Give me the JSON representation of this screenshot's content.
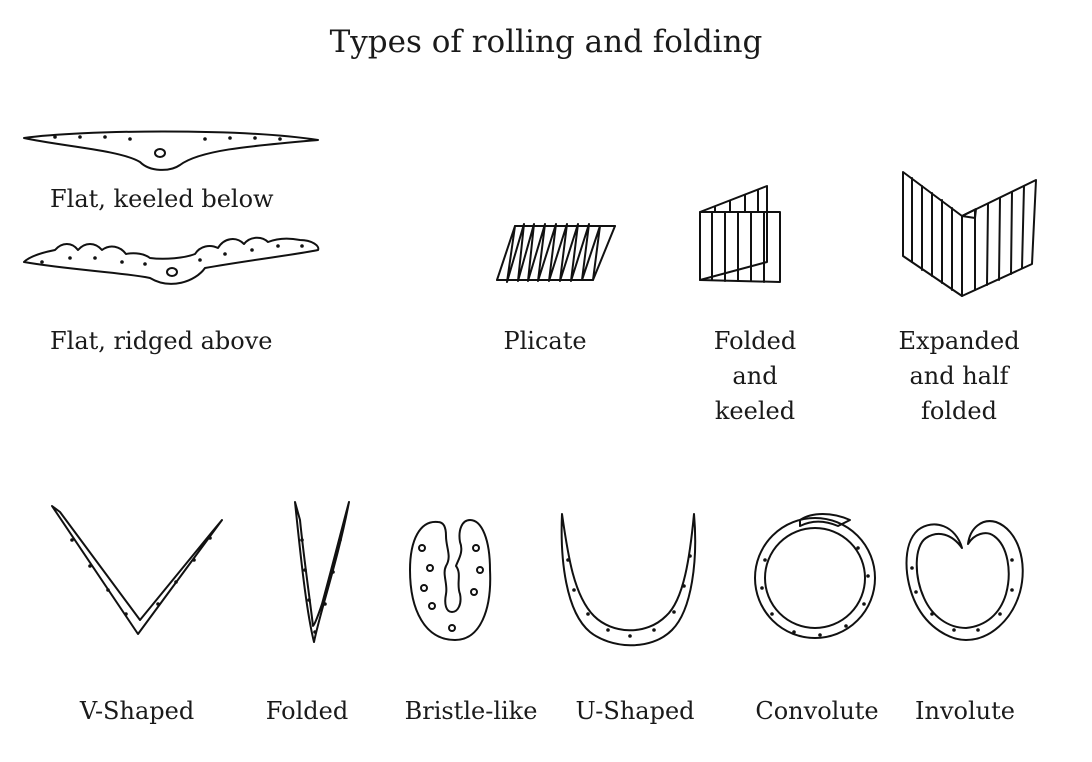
{
  "title": "Types of rolling and folding",
  "labels": {
    "flat_keeled": "Flat, keeled below",
    "flat_ridged": "Flat, ridged above",
    "plicate": "Plicate",
    "folded_keeled": [
      "Folded",
      "and",
      "keeled"
    ],
    "expanded_half": [
      "Expanded",
      "and half",
      "folded"
    ],
    "v_shaped": "V-Shaped",
    "folded": "Folded",
    "bristle": "Bristle-like",
    "u_shaped": "U-Shaped",
    "convolute": "Convolute",
    "involute": "Involute"
  }
}
